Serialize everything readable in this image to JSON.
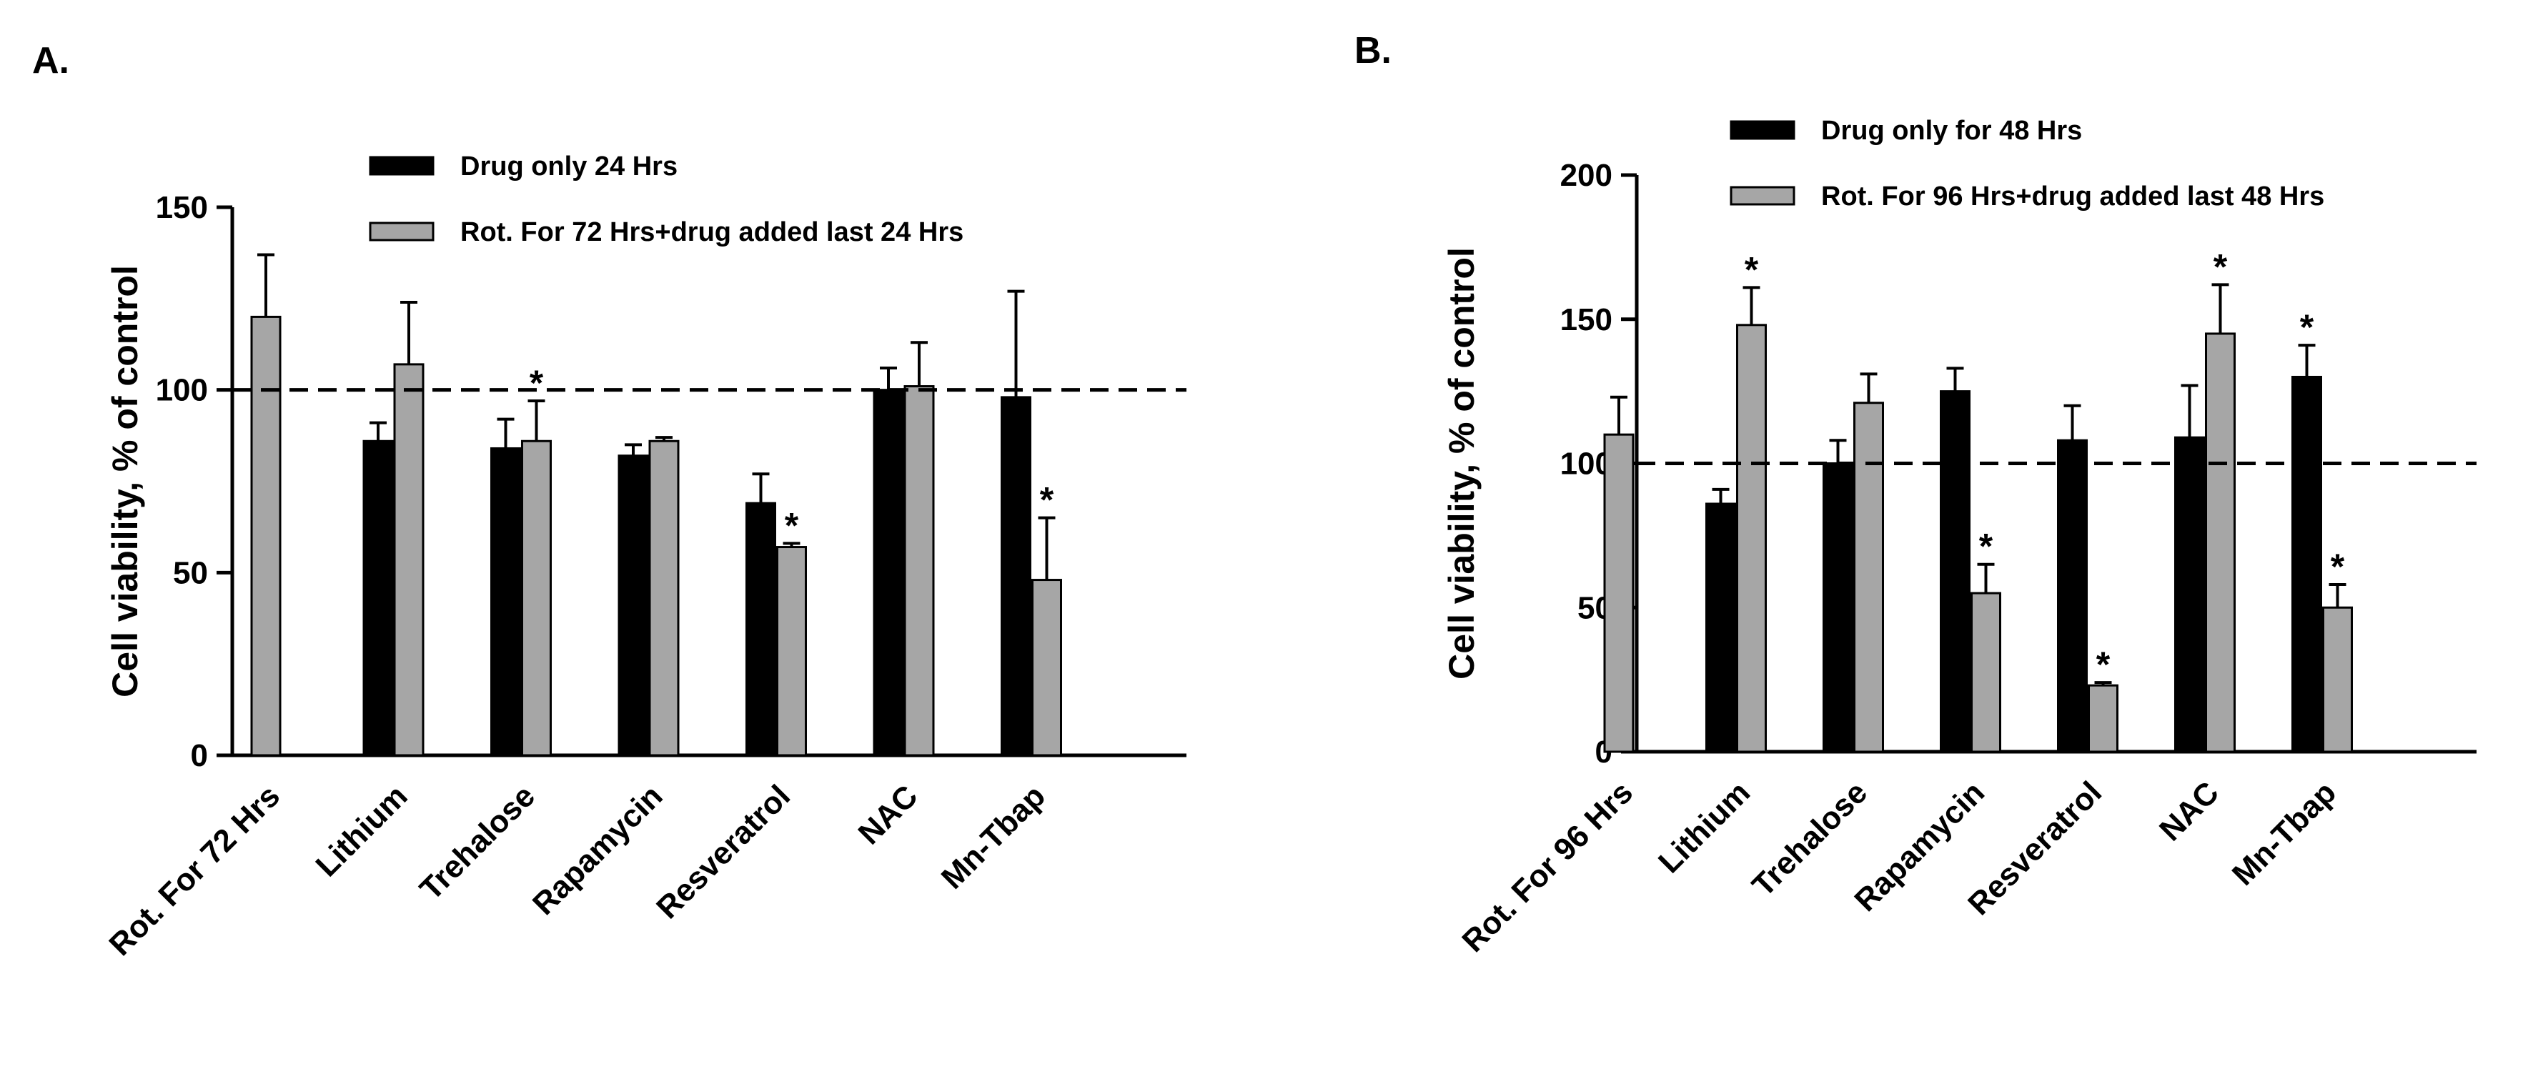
{
  "chart_data": [
    {
      "panel_label": "A.",
      "type": "bar",
      "ylabel": "Cell viability, % of control",
      "ylim": [
        0,
        150
      ],
      "yticks": [
        0,
        50,
        100,
        150
      ],
      "reference_line": 100,
      "categories": [
        "Rot. For 72 Hrs",
        "Lithium",
        "Trehalose",
        "Rapamycin",
        "Resveratrol",
        "NAC",
        "Mn-Tbap"
      ],
      "series": [
        {
          "name": "Drug only 24 Hrs",
          "color": "#000000",
          "values": [
            null,
            86,
            84,
            82,
            69,
            100,
            98
          ],
          "errors": [
            null,
            5,
            8,
            3,
            8,
            6,
            29
          ],
          "significant": [
            false,
            false,
            false,
            false,
            false,
            false,
            false
          ]
        },
        {
          "name": "Rot. For 72 Hrs+drug added last 24 Hrs",
          "color": "#a6a6a6",
          "values": [
            120,
            107,
            86,
            86,
            57,
            101,
            48
          ],
          "errors": [
            17,
            17,
            11,
            1,
            1,
            12,
            17
          ],
          "significant": [
            false,
            false,
            true,
            false,
            true,
            false,
            true
          ]
        }
      ],
      "significance_marker": "*"
    },
    {
      "panel_label": "B.",
      "type": "bar",
      "ylabel": "Cell viability, % of control",
      "ylim": [
        0,
        200
      ],
      "yticks": [
        0,
        50,
        100,
        150,
        200
      ],
      "reference_line": 100,
      "categories": [
        "Rot. For 96 Hrs",
        "Lithium",
        "Trehalose",
        "Rapamycin",
        "Resveratrol",
        "NAC",
        "Mn-Tbap"
      ],
      "series": [
        {
          "name": "Drug only for 48 Hrs",
          "color": "#000000",
          "values": [
            null,
            86,
            100,
            125,
            108,
            109,
            130
          ],
          "errors": [
            null,
            5,
            8,
            8,
            12,
            18,
            11
          ],
          "significant": [
            false,
            false,
            false,
            false,
            false,
            false,
            true
          ]
        },
        {
          "name": "Rot. For 96 Hrs+drug added last 48 Hrs",
          "color": "#a6a6a6",
          "values": [
            110,
            148,
            121,
            55,
            23,
            145,
            50
          ],
          "errors": [
            13,
            13,
            10,
            10,
            1,
            17,
            8
          ],
          "significant": [
            false,
            true,
            false,
            true,
            true,
            true,
            true
          ]
        }
      ],
      "significance_marker": "*"
    }
  ]
}
